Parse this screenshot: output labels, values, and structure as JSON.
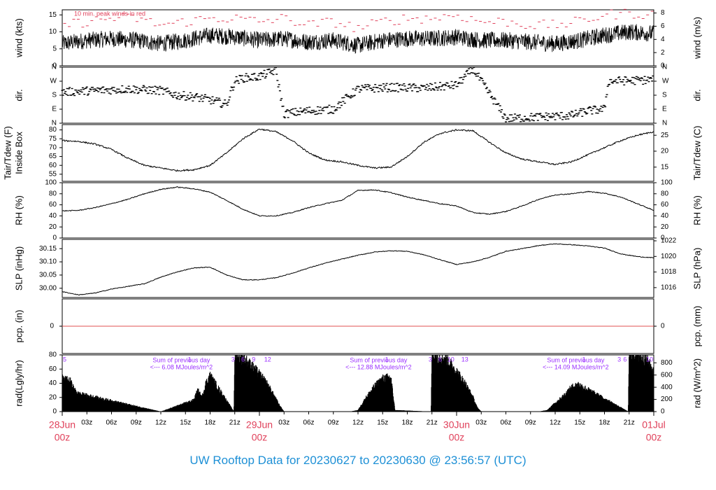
{
  "title": "UW Rooftop Data for 20230627  to  20230630 @ 23:56:57  (UTC)",
  "colors": {
    "title": "#1e90d6",
    "date_label": "#e0405a",
    "peak": "#e0405a",
    "annotation": "#9b30ff",
    "zero_line": "#e05050",
    "trace": "#000000",
    "frame": "#000000"
  },
  "time_axis": {
    "xlim_hours": [
      0,
      72
    ],
    "major_labels": [
      {
        "hour": 0,
        "line1": "28Jun",
        "line2": "00z"
      },
      {
        "hour": 24,
        "line1": "29Jun",
        "line2": "00z"
      },
      {
        "hour": 48,
        "line1": "30Jun",
        "line2": "00z"
      },
      {
        "hour": 72,
        "line1": "01Jul",
        "line2": "00z"
      }
    ],
    "minor_labels": [
      {
        "hour": 3,
        "label": "03z"
      },
      {
        "hour": 6,
        "label": "06z"
      },
      {
        "hour": 9,
        "label": "09z"
      },
      {
        "hour": 12,
        "label": "12z"
      },
      {
        "hour": 15,
        "label": "15z"
      },
      {
        "hour": 18,
        "label": "18z"
      },
      {
        "hour": 21,
        "label": "21z"
      },
      {
        "hour": 27,
        "label": "03z"
      },
      {
        "hour": 30,
        "label": "06z"
      },
      {
        "hour": 33,
        "label": "09z"
      },
      {
        "hour": 36,
        "label": "12z"
      },
      {
        "hour": 39,
        "label": "15z"
      },
      {
        "hour": 42,
        "label": "18z"
      },
      {
        "hour": 45,
        "label": "21z"
      },
      {
        "hour": 51,
        "label": "03z"
      },
      {
        "hour": 54,
        "label": "06z"
      },
      {
        "hour": 57,
        "label": "09z"
      },
      {
        "hour": 60,
        "label": "12z"
      },
      {
        "hour": 63,
        "label": "15z"
      },
      {
        "hour": 66,
        "label": "18z"
      },
      {
        "hour": 69,
        "label": "21z"
      }
    ]
  },
  "panels": {
    "wind": {
      "ylabel_left": "wind (kts)",
      "ylabel_right": "wind (m/s)",
      "ylim": [
        0,
        16.5
      ],
      "left_ticks": [
        0,
        5,
        10,
        15
      ],
      "right_ticks": [
        0,
        2,
        4,
        6,
        8
      ],
      "note": "10 min. peak winds in red"
    },
    "dir": {
      "ylabel_left": "dir.",
      "ylabel_right": "dir.",
      "tick_labels": [
        "N",
        "E",
        "S",
        "W",
        "N"
      ]
    },
    "temp": {
      "ylabel_left_1": "Tair/Tdew (F)",
      "ylabel_left_2": "Inside Box",
      "ylabel_right": "Tair/Tdew (C)",
      "ylim": [
        51,
        83
      ],
      "left_ticks": [
        55,
        60,
        65,
        70,
        75,
        80
      ],
      "right_ticks": [
        15,
        20,
        25
      ]
    },
    "rh": {
      "ylabel_left": "RH (%)",
      "ylabel_right": "RH (%)",
      "ylim": [
        0,
        100
      ],
      "ticks": [
        0,
        20,
        40,
        60,
        80,
        100
      ]
    },
    "slp": {
      "ylabel_left": "SLP (inHg)",
      "ylabel_right": "SLP (hPa)",
      "ylim": [
        29.965,
        30.185
      ],
      "left_ticks": [
        30.0,
        30.05,
        30.1,
        30.15
      ],
      "left_tick_labels": [
        "30.00",
        "30.05",
        "30.10",
        "30.15"
      ],
      "right_ticks": [
        1016,
        1018,
        1020,
        1022
      ]
    },
    "pcp": {
      "ylabel_left": "pcp. (in)",
      "ylabel_right": "pcp. (mm)",
      "tick_left": "0",
      "tick_right": "0"
    },
    "rad": {
      "ylabel_left": "rad(Lgly/hr)",
      "ylabel_right": "rad (W/m^2)",
      "ylim": [
        0,
        80
      ],
      "left_ticks": [
        0,
        20,
        40,
        60,
        80
      ],
      "right_ticks": [
        0,
        200,
        400,
        600,
        800
      ],
      "daily_summaries": [
        {
          "hour": 14.5,
          "line1": "Sum of previous day",
          "line2": "<--- 6.08 MJoules/m^2"
        },
        {
          "hour": 38.5,
          "line1": "Sum of previous day",
          "line2": "<--- 12.88 MJoules/m^2"
        },
        {
          "hour": 62.5,
          "line1": "Sum of previous day",
          "line2": "<--- 14.09 MJoules/m^2"
        }
      ],
      "top_marks": [
        {
          "hour": 0.3,
          "label": "5"
        },
        {
          "hour": 15.5,
          "label": "1"
        },
        {
          "hour": 20.8,
          "label": "3"
        },
        {
          "hour": 22.0,
          "label": "6"
        },
        {
          "hour": 23.3,
          "label": "9"
        },
        {
          "hour": 25.0,
          "label": "12"
        },
        {
          "hour": 39.5,
          "label": "1"
        },
        {
          "hour": 44.8,
          "label": "3"
        },
        {
          "hour": 46.0,
          "label": "6"
        },
        {
          "hour": 47.3,
          "label": "10"
        },
        {
          "hour": 49.0,
          "label": "13"
        },
        {
          "hour": 63.5,
          "label": "1"
        },
        {
          "hour": 67.8,
          "label": "3"
        },
        {
          "hour": 68.5,
          "label": "6"
        },
        {
          "hour": 71.5,
          "label": "10"
        }
      ]
    }
  },
  "chart_data": {
    "type": "line",
    "title": "UW Rooftop Data for 20230627  to  20230630 @ 23:56:57  (UTC)",
    "x_unit": "hours after 28Jun 00z",
    "series": [
      {
        "name": "wind (kts)",
        "x": [
          0,
          3,
          6,
          9,
          12,
          15,
          18,
          21,
          24,
          27,
          30,
          33,
          36,
          39,
          42,
          45,
          48,
          51,
          54,
          57,
          60,
          63,
          66,
          69,
          72
        ],
        "values": [
          6.5,
          7.5,
          8,
          7.5,
          6.5,
          7.5,
          9,
          8.5,
          7.5,
          8,
          7,
          7.5,
          6,
          7.5,
          8,
          8,
          8.5,
          7.5,
          7.5,
          7,
          6.5,
          7.5,
          9,
          10,
          9.5
        ]
      },
      {
        "name": "10 min. peak winds",
        "x": [
          0,
          3,
          6,
          9,
          12,
          15,
          18,
          21,
          24,
          27,
          30,
          33,
          36,
          39,
          42,
          45,
          48,
          51,
          54,
          57,
          60,
          63,
          66,
          69,
          72
        ],
        "values": [
          12,
          13,
          14,
          14,
          12,
          13,
          14,
          14,
          13,
          14,
          12,
          13,
          11,
          13,
          14,
          14,
          15,
          13,
          13,
          12,
          12,
          13,
          15,
          15.5,
          15
        ]
      },
      {
        "name": "dir.",
        "x": [
          0,
          4,
          8,
          12,
          14,
          16,
          18,
          20,
          21,
          22,
          24,
          26,
          27,
          30,
          33,
          36,
          40,
          44,
          45,
          48,
          50,
          54,
          58,
          60,
          62,
          64,
          66,
          66.5,
          70,
          72
        ],
        "values": [
          200,
          210,
          220,
          210,
          180,
          170,
          150,
          120,
          270,
          290,
          300,
          340,
          60,
          80,
          90,
          220,
          230,
          225,
          230,
          245,
          350,
          30,
          40,
          45,
          50,
          80,
          90,
          270,
          275,
          280
        ]
      },
      {
        "name": "Tair (F)",
        "x": [
          0,
          2,
          4,
          6,
          8,
          10,
          12,
          14,
          16,
          18,
          20,
          22,
          24,
          26,
          28,
          30,
          32,
          34,
          36,
          38,
          40,
          42,
          44,
          46,
          48,
          50,
          52,
          54,
          56,
          58,
          60,
          62,
          64,
          66,
          68,
          70,
          72
        ],
        "values": [
          74,
          73.5,
          72,
          69,
          64,
          60,
          58.5,
          57,
          57.5,
          60,
          67,
          75,
          80.5,
          79,
          74,
          67,
          63,
          62,
          60,
          58.5,
          59,
          65,
          73,
          78,
          80,
          79.5,
          73,
          67,
          63.5,
          62,
          60.5,
          62,
          66,
          70,
          74,
          77,
          79
        ]
      },
      {
        "name": "RH (%)",
        "x": [
          0,
          2,
          4,
          6,
          8,
          10,
          12,
          14,
          16,
          18,
          20,
          22,
          24,
          26,
          28,
          30,
          32,
          34,
          36,
          38,
          40,
          42,
          44,
          46,
          48,
          50,
          52,
          54,
          56,
          58,
          60,
          62,
          64,
          66,
          68,
          70,
          72
        ],
        "values": [
          49,
          50,
          55,
          62,
          70,
          80,
          88,
          92,
          89,
          83,
          68,
          52,
          40,
          40,
          46,
          55,
          62,
          68,
          86,
          87,
          82,
          74,
          68,
          62,
          58,
          46,
          43,
          48,
          58,
          70,
          78,
          80,
          84,
          81,
          74,
          62,
          50
        ]
      },
      {
        "name": "SLP (inHg)",
        "x": [
          0,
          2,
          4,
          6,
          8,
          10,
          12,
          14,
          16,
          18,
          20,
          22,
          24,
          26,
          28,
          30,
          32,
          34,
          36,
          38,
          40,
          42,
          44,
          46,
          48,
          50,
          52,
          54,
          56,
          58,
          60,
          62,
          64,
          66,
          68,
          70,
          72
        ],
        "values": [
          29.987,
          29.975,
          29.982,
          29.997,
          30.007,
          30.017,
          30.042,
          30.062,
          30.077,
          30.08,
          30.05,
          30.032,
          30.032,
          30.04,
          30.057,
          30.077,
          30.095,
          30.11,
          30.125,
          30.137,
          30.142,
          30.14,
          30.127,
          30.108,
          30.09,
          30.1,
          30.117,
          30.14,
          30.15,
          30.162,
          30.168,
          30.165,
          30.16,
          30.152,
          30.13,
          30.12,
          30.115
        ]
      },
      {
        "name": "pcp. (in)",
        "x": [
          0,
          72
        ],
        "values": [
          0,
          0
        ]
      },
      {
        "name": "rad (Lgly/hr)",
        "x": [
          0,
          1,
          1.5,
          2,
          12,
          13,
          14,
          15,
          16,
          16.5,
          17,
          17.5,
          18,
          20.9,
          21,
          22,
          23,
          24,
          25,
          26,
          26.5,
          27,
          35,
          36,
          37,
          38,
          39,
          40,
          40.5,
          44.9,
          45,
          46,
          47,
          48,
          49,
          50,
          50.5,
          51,
          58,
          59,
          60,
          61,
          62,
          62.8,
          68.9,
          69,
          70,
          71,
          72
        ],
        "values": [
          46,
          42,
          30,
          25,
          0,
          4,
          8,
          12,
          16,
          30,
          20,
          40,
          50,
          0,
          78,
          74,
          64,
          52,
          38,
          18,
          8,
          0,
          0,
          2,
          20,
          35,
          46,
          48,
          2,
          0,
          80,
          78,
          70,
          56,
          40,
          20,
          6,
          0,
          0,
          2,
          12,
          22,
          34,
          38,
          0,
          82,
          80,
          74,
          56
        ]
      }
    ],
    "xlim": [
      0,
      72
    ]
  }
}
